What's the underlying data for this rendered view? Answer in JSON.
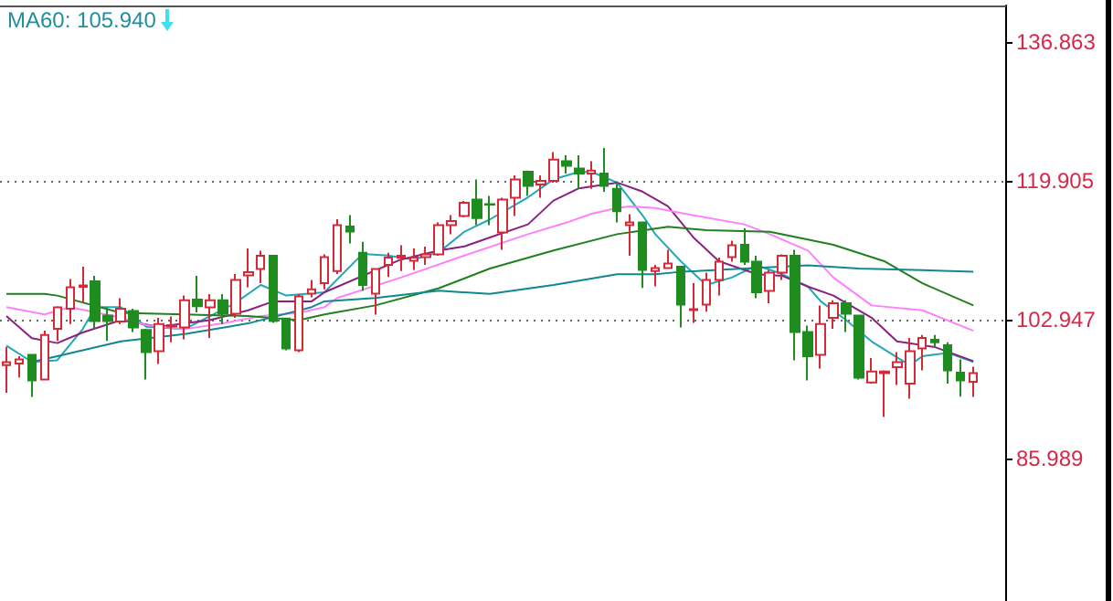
{
  "chart_data": {
    "type": "candlestick",
    "categories": [
      null,
      null,
      null,
      null,
      null,
      null,
      null,
      null,
      null,
      null,
      null,
      null,
      null,
      null,
      null,
      null,
      null,
      null,
      null,
      null,
      null,
      null,
      null,
      null,
      null,
      null,
      null,
      null,
      null,
      null,
      null,
      null,
      null,
      null,
      null,
      null,
      null,
      null,
      null,
      null,
      null,
      null,
      null,
      null,
      null,
      null,
      null,
      null,
      null,
      null,
      null,
      null,
      null,
      null,
      null,
      null,
      null,
      null,
      null,
      null,
      null,
      null,
      null,
      null,
      null,
      null,
      null,
      null,
      null,
      null,
      null,
      null,
      null,
      null,
      null,
      null,
      null
    ],
    "ohlc": [
      [
        97.4,
        99.6,
        94.03,
        97.76
      ],
      [
        97.6,
        98.5,
        95.9,
        98.1
      ],
      [
        98.65,
        98.65,
        93.52,
        95.53
      ],
      [
        95.66,
        101.62,
        95.53,
        101.1
      ],
      [
        101.84,
        104.59,
        100.35,
        104.45
      ],
      [
        104.3,
        107.93,
        102.44,
        106.91
      ],
      [
        106.97,
        109.43,
        104.97,
        107.13
      ],
      [
        107.64,
        108.31,
        101.84,
        102.8
      ],
      [
        103.47,
        104.45,
        100.35,
        102.8
      ],
      [
        102.73,
        105.57,
        102.44,
        104.3
      ],
      [
        104.01,
        104.3,
        101.46,
        102.0
      ],
      [
        101.69,
        101.84,
        95.66,
        99.01
      ],
      [
        99.1,
        103.18,
        97.54,
        102.44
      ],
      [
        102.13,
        103.34,
        100.21,
        102.29
      ],
      [
        102.0,
        105.92,
        100.57,
        105.34
      ],
      [
        105.41,
        108.31,
        103.85,
        104.59
      ],
      [
        104.45,
        106.08,
        100.73,
        105.34
      ],
      [
        105.34,
        106.08,
        102.44,
        103.69
      ],
      [
        103.69,
        108.54,
        103.18,
        107.8
      ],
      [
        108.38,
        111.66,
        106.91,
        108.76
      ],
      [
        109.14,
        111.37,
        107.42,
        110.76
      ],
      [
        110.76,
        110.76,
        102.58,
        102.8
      ],
      [
        103.11,
        103.11,
        99.23,
        99.45
      ],
      [
        99.23,
        106.08,
        99.01,
        105.79
      ],
      [
        106.15,
        107.8,
        105.7,
        106.68
      ],
      [
        107.42,
        110.92,
        106.68,
        110.61
      ],
      [
        108.91,
        115.23,
        108.54,
        114.49
      ],
      [
        114.34,
        115.74,
        112.26,
        113.73
      ],
      [
        111.14,
        112.48,
        106.46,
        107.2
      ],
      [
        106.15,
        109.27,
        103.56,
        109.14
      ],
      [
        109.65,
        111.14,
        108.16,
        110.54
      ],
      [
        110.54,
        112.04,
        108.91,
        110.76
      ],
      [
        110.16,
        111.66,
        109.05,
        110.54
      ],
      [
        110.61,
        111.88,
        109.65,
        110.92
      ],
      [
        110.92,
        114.85,
        110.76,
        114.49
      ],
      [
        114.49,
        115.74,
        113.38,
        115.0
      ],
      [
        115.61,
        117.46,
        115.45,
        117.24
      ],
      [
        117.62,
        120.07,
        114.49,
        115.38
      ],
      [
        117.08,
        118.06,
        114.49,
        117.01
      ],
      [
        113.6,
        117.84,
        111.5,
        117.62
      ],
      [
        117.84,
        120.58,
        115.61,
        120.07
      ],
      [
        121.03,
        121.18,
        118.06,
        119.31
      ],
      [
        119.47,
        120.58,
        117.84,
        119.91
      ],
      [
        119.91,
        123.42,
        119.69,
        122.52
      ],
      [
        122.3,
        123.04,
        120.8,
        121.76
      ],
      [
        121.41,
        123.04,
        118.95,
        120.8
      ],
      [
        120.8,
        122.3,
        118.95,
        121.18
      ],
      [
        120.8,
        123.93,
        118.57,
        119.31
      ],
      [
        118.95,
        119.85,
        114.85,
        116.19
      ],
      [
        114.49,
        115.83,
        110.76,
        114.85
      ],
      [
        114.85,
        114.85,
        106.82,
        109.05
      ],
      [
        108.91,
        109.65,
        107.04,
        109.27
      ],
      [
        109.27,
        111.5,
        109.2,
        109.81
      ],
      [
        109.43,
        109.43,
        102.0,
        104.81
      ],
      [
        104.14,
        107.42,
        102.58,
        104.23
      ],
      [
        104.81,
        108.69,
        103.92,
        107.8
      ],
      [
        107.8,
        110.54,
        105.92,
        110.03
      ],
      [
        110.61,
        112.62,
        110.03,
        112.04
      ],
      [
        112.1,
        114.11,
        109.65,
        110.03
      ],
      [
        110.03,
        110.76,
        105.57,
        106.3
      ],
      [
        106.46,
        109.05,
        104.97,
        108.69
      ],
      [
        108.69,
        110.92,
        107.8,
        110.76
      ],
      [
        110.76,
        111.5,
        97.98,
        101.46
      ],
      [
        101.46,
        102.22,
        95.53,
        98.5
      ],
      [
        98.65,
        104.68,
        97.0,
        102.44
      ],
      [
        103.18,
        105.34,
        101.84,
        104.97
      ],
      [
        104.97,
        105.34,
        101.46,
        103.69
      ],
      [
        103.47,
        103.47,
        95.66,
        95.88
      ],
      [
        95.3,
        98.27,
        95.15,
        96.64
      ],
      [
        96.42,
        96.78,
        91.07,
        96.64
      ],
      [
        97.16,
        99.01,
        94.99,
        97.76
      ],
      [
        95.15,
        100.73,
        93.3,
        99.1
      ],
      [
        99.45,
        101.1,
        96.78,
        100.73
      ],
      [
        100.5,
        101.1,
        99.6,
        100.21
      ],
      [
        99.83,
        100.21,
        95.15,
        96.78
      ],
      [
        96.49,
        98.1,
        93.55,
        95.53
      ],
      [
        95.37,
        97.22,
        93.52,
        96.42
      ]
    ],
    "series": [
      {
        "type": "line",
        "color": "#20a8b8",
        "values": [
          99.8,
          null,
          97.8,
          null,
          98.0,
          null,
          101.8,
          104.5,
          null,
          104.5,
          null,
          102.1,
          null,
          null,
          101.8,
          null,
          103.4,
          null,
          105.0,
          null,
          107.2,
          null,
          105.9,
          null,
          null,
          106.3,
          null,
          null,
          111.0,
          null,
          110.8,
          null,
          110.3,
          null,
          111.2,
          null,
          113.7,
          null,
          115.2,
          null,
          null,
          117.9,
          null,
          120.1,
          null,
          121.0,
          121.0,
          null,
          119.7,
          null,
          115.7,
          113.4,
          null,
          110.1,
          null,
          107.2,
          null,
          108.1,
          null,
          109.6,
          null,
          108.5,
          null,
          107.0,
          105.2,
          null,
          102.9,
          null,
          100.3,
          null,
          null,
          97.4,
          98.5,
          null,
          98.9,
          null,
          97.8
        ]
      },
      {
        "type": "line",
        "color": "#8b2080",
        "values": [
          103.4,
          null,
          100.7,
          null,
          100.1,
          null,
          101.4,
          null,
          null,
          102.9,
          null,
          null,
          102.1,
          null,
          102.5,
          null,
          102.9,
          null,
          null,
          104.1,
          null,
          105.2,
          null,
          null,
          105.2,
          106.3,
          null,
          null,
          null,
          null,
          null,
          110.3,
          null,
          null,
          111.4,
          null,
          111.9,
          null,
          113.0,
          null,
          null,
          114.6,
          null,
          117.5,
          null,
          119.0,
          null,
          null,
          119.7,
          null,
          118.6,
          null,
          116.8,
          null,
          113.0,
          null,
          110.1,
          null,
          null,
          108.5,
          null,
          108.3,
          null,
          107.0,
          null,
          105.9,
          null,
          null,
          103.2,
          null,
          100.3,
          null,
          null,
          99.6,
          null,
          null,
          97.9
        ]
      },
      {
        "type": "line",
        "color": "#ff80ff",
        "values": [
          104.5,
          null,
          null,
          103.6,
          null,
          104.5,
          null,
          null,
          null,
          103.2,
          null,
          102.3,
          null,
          null,
          101.8,
          null,
          null,
          102.5,
          null,
          null,
          103.4,
          null,
          null,
          103.8,
          null,
          104.5,
          105.6,
          null,
          null,
          null,
          null,
          108.1,
          null,
          null,
          null,
          null,
          110.8,
          null,
          null,
          null,
          null,
          113.4,
          null,
          null,
          114.8,
          null,
          115.9,
          null,
          116.6,
          116.8,
          null,
          116.6,
          null,
          null,
          115.7,
          null,
          null,
          null,
          114.6,
          null,
          113.4,
          null,
          null,
          111.4,
          null,
          108.1,
          null,
          null,
          104.7,
          null,
          null,
          null,
          104.1,
          null,
          null,
          null,
          101.6
        ]
      },
      {
        "type": "line",
        "color": "#208020",
        "values": [
          106.1,
          null,
          null,
          106.1,
          105.9,
          null,
          null,
          null,
          null,
          103.8,
          null,
          null,
          null,
          null,
          103.6,
          null,
          null,
          null,
          null,
          103.4,
          null,
          null,
          null,
          102.9,
          null,
          103.6,
          null,
          null,
          null,
          104.7,
          null,
          null,
          null,
          null,
          106.8,
          null,
          null,
          null,
          109.2,
          null,
          null,
          null,
          null,
          111.4,
          null,
          null,
          null,
          null,
          113.4,
          null,
          null,
          null,
          114.3,
          null,
          null,
          113.9,
          null,
          null,
          null,
          null,
          113.7,
          null,
          null,
          null,
          null,
          112.1,
          null,
          null,
          null,
          110.1,
          null,
          null,
          107.4,
          null,
          null,
          null,
          104.7
        ]
      },
      {
        "type": "line",
        "color": "#108890",
        "values": [
          null,
          null,
          97.8,
          null,
          98.5,
          null,
          null,
          null,
          null,
          100.3,
          null,
          null,
          null,
          null,
          101.2,
          null,
          null,
          null,
          null,
          102.5,
          null,
          null,
          null,
          null,
          104.5,
          105.2,
          null,
          null,
          null,
          105.6,
          null,
          null,
          null,
          null,
          106.5,
          null,
          null,
          null,
          106.1,
          null,
          null,
          null,
          null,
          107.2,
          null,
          null,
          null,
          null,
          108.5,
          null,
          null,
          108.5,
          null,
          108.8,
          null,
          null,
          null,
          null,
          109.2,
          null,
          null,
          null,
          null,
          109.6,
          null,
          null,
          null,
          109.2,
          null,
          null,
          null,
          null,
          109.0,
          null,
          null,
          null,
          108.8
        ]
      }
    ],
    "ylim": [
      68.6,
      141.33
    ],
    "yticks": [
      85.989,
      102.947,
      119.905,
      136.863
    ],
    "grid": "y",
    "tick_labels": "y",
    "marker": "none",
    "annotations": [
      "MA60: 105.940"
    ]
  }
}
